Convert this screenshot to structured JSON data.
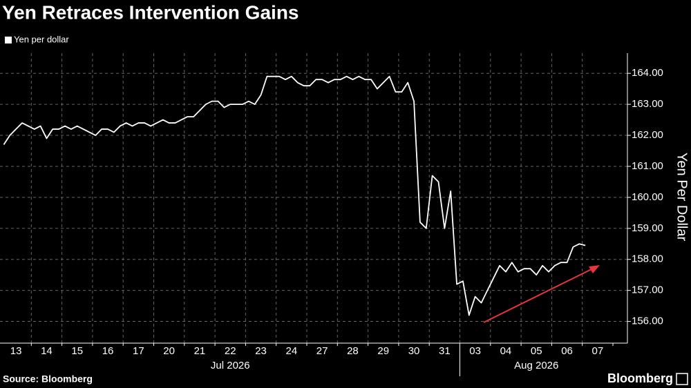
{
  "chart_data": {
    "type": "line",
    "title": "Yen Retraces Intervention Gains",
    "y_axis_label": "Yen Per Dollar",
    "source": "Source: Bloomberg",
    "brand": "Bloomberg",
    "categories": [
      "13",
      null,
      null,
      null,
      null,
      null,
      null,
      "14",
      null,
      null,
      null,
      null,
      "15",
      null,
      null,
      null,
      null,
      "16",
      null,
      null,
      null,
      null,
      "17",
      null,
      null,
      null,
      null,
      "20",
      null,
      null,
      null,
      null,
      "21",
      null,
      null,
      null,
      null,
      "22",
      null,
      null,
      null,
      null,
      "23",
      null,
      null,
      null,
      null,
      "24",
      null,
      null,
      null,
      null,
      "27",
      null,
      null,
      null,
      null,
      "28",
      null,
      null,
      null,
      null,
      "29",
      null,
      null,
      null,
      null,
      "30",
      null,
      null,
      null,
      null,
      "31",
      null,
      null,
      null,
      null,
      "03",
      null,
      null,
      null,
      null,
      "04",
      null,
      null,
      null,
      null,
      "05",
      null,
      null,
      null,
      null,
      "06",
      null,
      null,
      null,
      null,
      "07",
      null,
      null
    ],
    "x_groups": [
      "Jul 2026",
      "Aug 2026"
    ],
    "series": [
      {
        "name": "Yen per dollar",
        "color": "#ffffff",
        "values": [
          161.7,
          162.0,
          162.2,
          162.4,
          162.3,
          162.2,
          162.3,
          161.9,
          162.2,
          162.2,
          162.3,
          162.2,
          162.3,
          162.2,
          162.1,
          162.0,
          162.2,
          162.2,
          162.1,
          162.3,
          162.4,
          162.3,
          162.4,
          162.4,
          162.3,
          162.4,
          162.5,
          162.4,
          162.4,
          162.5,
          162.6,
          162.6,
          162.8,
          163.0,
          163.1,
          163.1,
          162.9,
          163.0,
          163.0,
          163.0,
          163.1,
          163.0,
          163.3,
          163.9,
          163.9,
          163.9,
          163.8,
          163.9,
          163.7,
          163.6,
          163.6,
          163.8,
          163.8,
          163.7,
          163.8,
          163.8,
          163.9,
          163.8,
          163.9,
          163.8,
          163.8,
          163.5,
          163.7,
          163.9,
          163.4,
          163.4,
          163.7,
          163.1,
          159.2,
          159.0,
          160.7,
          160.5,
          159.0,
          160.2,
          157.2,
          157.3,
          156.2,
          156.8,
          156.6,
          157.0,
          157.4,
          157.8,
          157.6,
          157.9,
          157.6,
          157.7,
          157.7,
          157.5,
          157.8,
          157.6,
          157.8,
          157.9,
          157.9,
          158.4,
          158.5,
          158.45,
          null,
          null,
          null,
          null
        ]
      }
    ],
    "ylim": [
      155.3,
      164.65
    ],
    "yticks": [
      {
        "value": 156,
        "label": "156.00"
      },
      {
        "value": 157,
        "label": "157.00"
      },
      {
        "value": 158,
        "label": "158.00"
      },
      {
        "value": 159,
        "label": "159.00"
      },
      {
        "value": 160,
        "label": "160.00"
      },
      {
        "value": 161,
        "label": "161.00"
      },
      {
        "value": 162,
        "label": "162.00"
      },
      {
        "value": 163,
        "label": "163.00"
      },
      {
        "value": 164,
        "label": "164.00"
      }
    ],
    "grid": true
  }
}
